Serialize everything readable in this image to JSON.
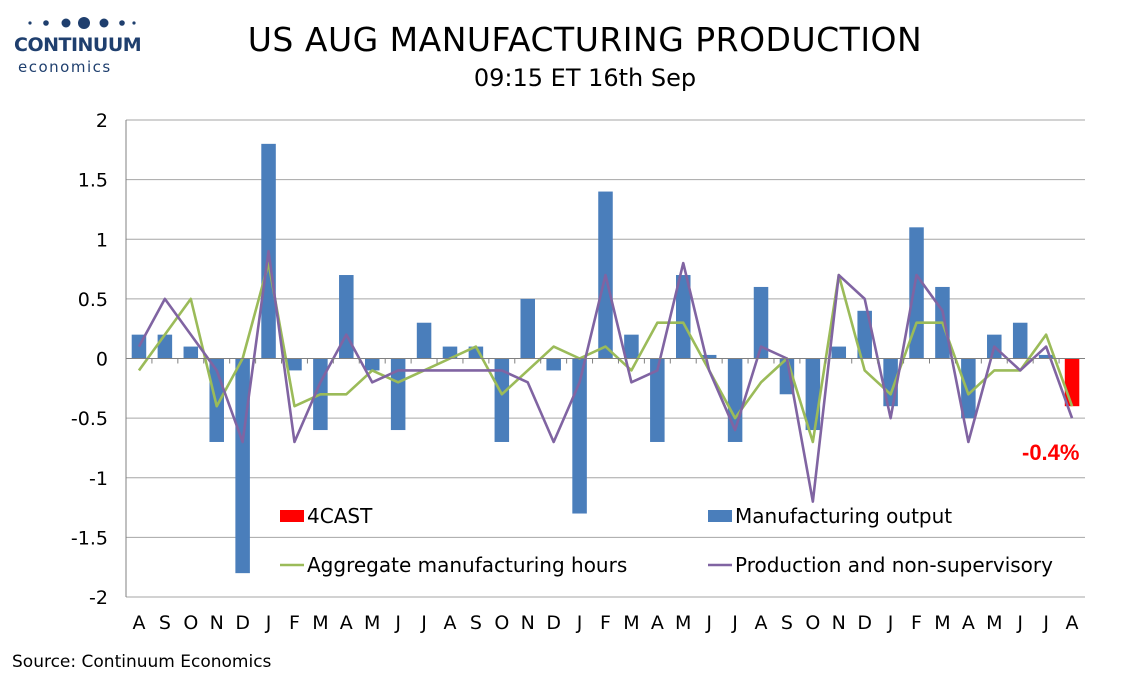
{
  "logo": {
    "name": "CONTINUUM",
    "sub": "economics"
  },
  "header": {
    "title": "US AUG MANUFACTURING PRODUCTION",
    "subtitle": "09:15 ET 16th Sep"
  },
  "callout": "-0.4%",
  "source": "Source: Continuum Economics",
  "colors": {
    "manufacturing_output": "#4a7ebb",
    "forecast": "#ff0000",
    "aggregate_hours": "#9bbb59",
    "production_nonsupervisory": "#8064a2",
    "logo": "#1f3f6e"
  },
  "chart_data": {
    "type": "bar",
    "categories": [
      "A",
      "S",
      "O",
      "N",
      "D",
      "J",
      "F",
      "M",
      "A",
      "M",
      "J",
      "J",
      "A",
      "S",
      "O",
      "N",
      "D",
      "J",
      "F",
      "M",
      "A",
      "M",
      "J",
      "J",
      "A",
      "S",
      "O",
      "N",
      "D",
      "J",
      "F",
      "M",
      "A",
      "M",
      "J",
      "J",
      "A"
    ],
    "ylim": [
      -2,
      2
    ],
    "yticks": [
      "2",
      "1.5",
      "1",
      "0.5",
      "0",
      "-0.5",
      "-1",
      "-1.5",
      "-2"
    ],
    "grid": true,
    "legend_position": "lower-center",
    "series": [
      {
        "name": "Manufacturing output",
        "kind": "bar",
        "values": [
          0.2,
          0.2,
          0.1,
          -0.7,
          -1.8,
          1.8,
          -0.1,
          -0.6,
          0.7,
          -0.1,
          -0.6,
          0.3,
          0.1,
          0.1,
          -0.7,
          0.5,
          -0.1,
          -1.3,
          1.4,
          0.2,
          -0.7,
          0.7,
          0.03,
          -0.7,
          0.6,
          -0.3,
          -0.6,
          0.1,
          0.4,
          -0.4,
          1.1,
          0.6,
          -0.5,
          0.2,
          0.3,
          0.03,
          null
        ]
      },
      {
        "name": "4CAST",
        "kind": "bar",
        "values": [
          null,
          null,
          null,
          null,
          null,
          null,
          null,
          null,
          null,
          null,
          null,
          null,
          null,
          null,
          null,
          null,
          null,
          null,
          null,
          null,
          null,
          null,
          null,
          null,
          null,
          null,
          null,
          null,
          null,
          null,
          null,
          null,
          null,
          null,
          null,
          null,
          -0.4
        ]
      },
      {
        "name": "Aggregate manufacturing hours",
        "kind": "line",
        "values": [
          -0.1,
          0.2,
          0.5,
          -0.4,
          0.0,
          0.8,
          -0.4,
          -0.3,
          -0.3,
          -0.1,
          -0.2,
          -0.1,
          0.0,
          0.1,
          -0.3,
          -0.1,
          0.1,
          0.0,
          0.1,
          -0.1,
          0.3,
          0.3,
          -0.1,
          -0.5,
          -0.2,
          0.0,
          -0.7,
          0.7,
          -0.1,
          -0.3,
          0.3,
          0.3,
          -0.3,
          -0.1,
          -0.1,
          0.2,
          -0.4
        ]
      },
      {
        "name": "Production and non-supervisory",
        "kind": "line",
        "values": [
          0.1,
          0.5,
          0.2,
          -0.1,
          -0.7,
          0.9,
          -0.7,
          -0.2,
          0.2,
          -0.2,
          -0.1,
          -0.1,
          -0.1,
          -0.1,
          -0.1,
          -0.2,
          -0.7,
          -0.2,
          0.7,
          -0.2,
          -0.1,
          0.8,
          -0.1,
          -0.6,
          0.1,
          0.0,
          -1.2,
          0.7,
          0.5,
          -0.5,
          0.7,
          0.4,
          -0.7,
          0.1,
          -0.1,
          0.1,
          -0.5
        ]
      }
    ]
  }
}
